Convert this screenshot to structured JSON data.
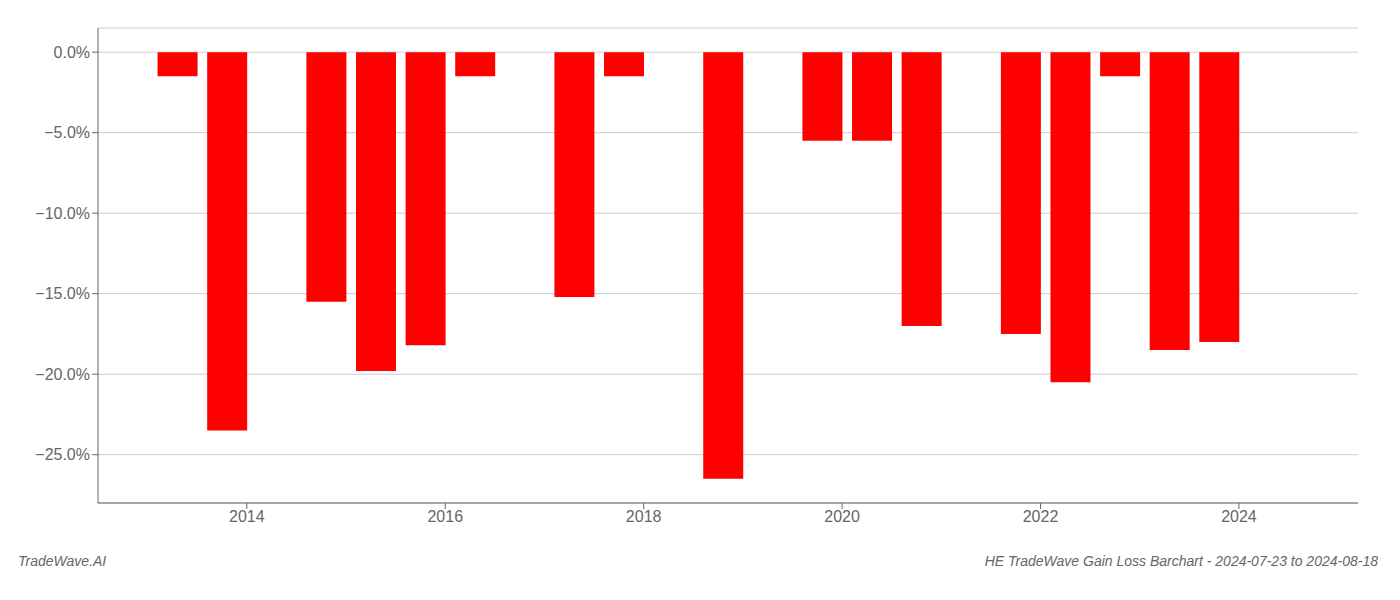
{
  "chart_data": {
    "type": "bar",
    "x": [
      2013.3,
      2013.8,
      2014.8,
      2015.3,
      2015.8,
      2016.3,
      2017.3,
      2017.8,
      2018.8,
      2019.8,
      2020.3,
      2020.8,
      2021.8,
      2022.3,
      2022.8,
      2023.3,
      2023.8
    ],
    "values": [
      -1.5,
      -23.5,
      -15.5,
      -19.8,
      -18.2,
      -1.5,
      -15.2,
      -1.5,
      -26.5,
      -5.5,
      -5.5,
      -17.0,
      -17.5,
      -20.5,
      -1.5,
      -18.5,
      -18.0
    ],
    "color": "#ff0000",
    "xlim": [
      2012.5,
      2025.2
    ],
    "ylim": [
      -28.0,
      1.5
    ],
    "xticks": [
      2014,
      2016,
      2018,
      2020,
      2022,
      2024
    ],
    "yticks": [
      {
        "value": 0.0,
        "label": "0.0%"
      },
      {
        "value": -5.0,
        "label": "−5.0%"
      },
      {
        "value": -10.0,
        "label": "−10.0%"
      },
      {
        "value": -15.0,
        "label": "−15.0%"
      },
      {
        "value": -20.0,
        "label": "−20.0%"
      },
      {
        "value": -25.0,
        "label": "−25.0%"
      }
    ],
    "grid": true,
    "annotations": [
      "TradeWave.AI",
      "HE TradeWave Gain Loss Barchart - 2024-07-23 to 2024-08-18"
    ]
  }
}
